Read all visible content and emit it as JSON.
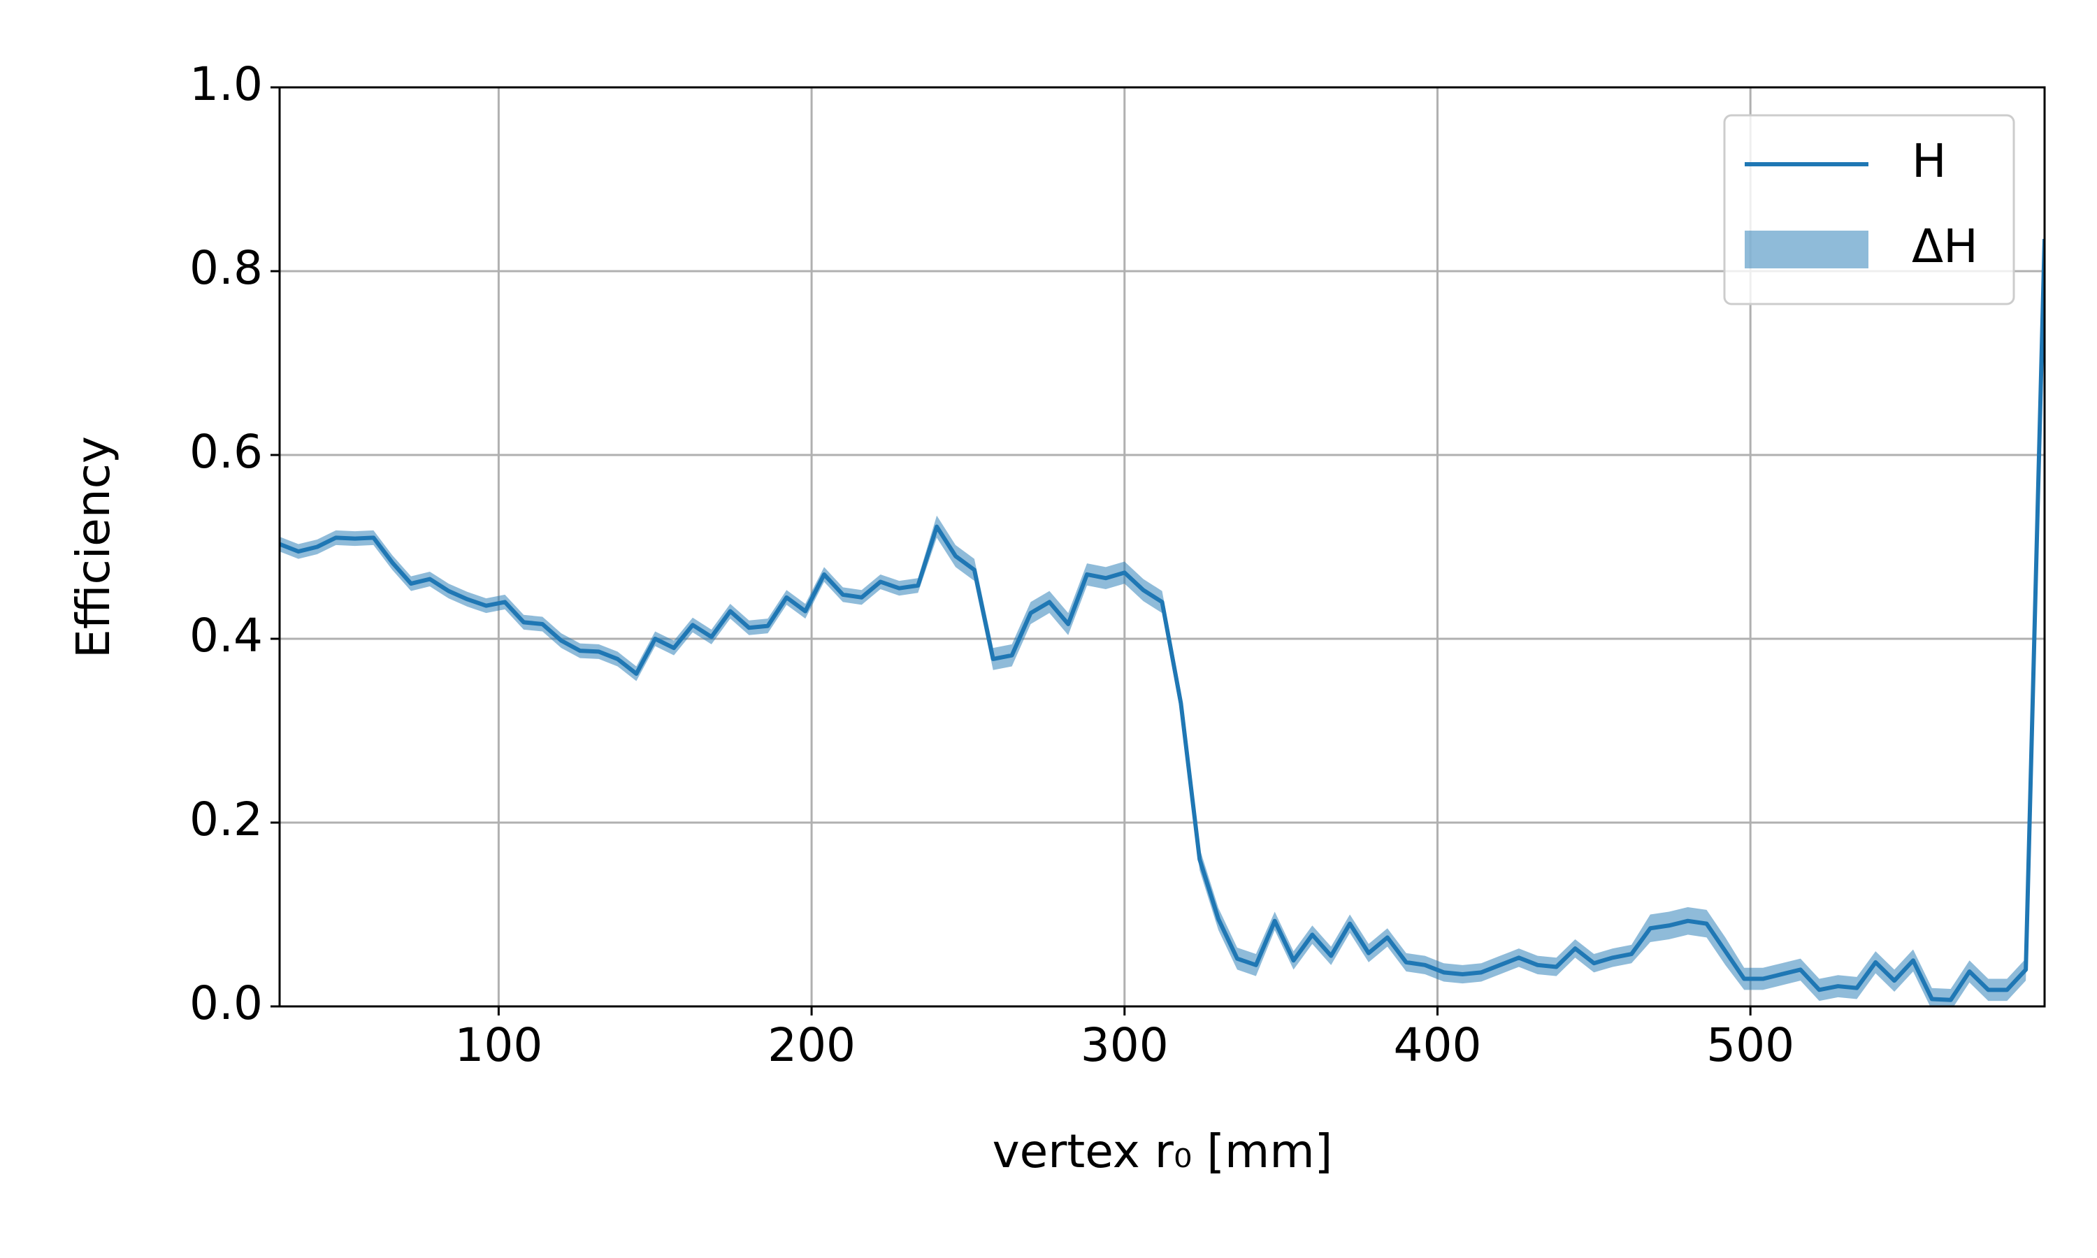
{
  "chart_data": {
    "type": "line",
    "xlabel": "vertex r₀ [mm]",
    "ylabel": "Efficiency",
    "x": [
      30,
      36,
      42,
      48,
      54,
      60,
      66,
      72,
      78,
      84,
      90,
      96,
      102,
      108,
      114,
      120,
      126,
      132,
      138,
      144,
      150,
      156,
      162,
      168,
      174,
      180,
      186,
      192,
      198,
      204,
      210,
      216,
      222,
      228,
      234,
      240,
      246,
      252,
      258,
      264,
      270,
      276,
      282,
      288,
      294,
      300,
      306,
      312,
      318,
      324,
      330,
      336,
      342,
      348,
      354,
      360,
      366,
      372,
      378,
      384,
      390,
      396,
      402,
      408,
      414,
      420,
      426,
      432,
      438,
      444,
      450,
      456,
      462,
      468,
      474,
      480,
      486,
      492,
      498,
      504,
      510,
      516,
      522,
      528,
      534,
      540,
      546,
      552,
      558,
      564,
      570,
      576,
      582,
      588,
      594
    ],
    "series": [
      {
        "name": "H",
        "color": "#1f77b4",
        "values": [
          0.503,
          0.495,
          0.5,
          0.51,
          0.509,
          0.51,
          0.483,
          0.46,
          0.465,
          0.452,
          0.443,
          0.436,
          0.44,
          0.418,
          0.416,
          0.398,
          0.387,
          0.386,
          0.378,
          0.362,
          0.4,
          0.39,
          0.415,
          0.402,
          0.43,
          0.412,
          0.414,
          0.445,
          0.43,
          0.47,
          0.448,
          0.445,
          0.462,
          0.455,
          0.458,
          0.522,
          0.49,
          0.475,
          0.378,
          0.382,
          0.428,
          0.44,
          0.416,
          0.47,
          0.466,
          0.472,
          0.453,
          0.44,
          0.33,
          0.16,
          0.095,
          0.052,
          0.045,
          0.093,
          0.05,
          0.078,
          0.055,
          0.09,
          0.058,
          0.075,
          0.048,
          0.045,
          0.037,
          0.035,
          0.037,
          0.045,
          0.053,
          0.045,
          0.043,
          0.063,
          0.047,
          0.053,
          0.057,
          0.085,
          0.088,
          0.093,
          0.09,
          0.06,
          0.03,
          0.03,
          0.035,
          0.04,
          0.018,
          0.022,
          0.02,
          0.048,
          0.028,
          0.05,
          0.008,
          0.007,
          0.038,
          0.018,
          0.018,
          0.04,
          0.835
        ]
      },
      {
        "name": "ΔH",
        "color": "#1f77b4",
        "band_of": "H",
        "values": [
          0.008,
          0.008,
          0.008,
          0.008,
          0.008,
          0.008,
          0.008,
          0.008,
          0.008,
          0.008,
          0.008,
          0.008,
          0.008,
          0.008,
          0.008,
          0.008,
          0.008,
          0.008,
          0.008,
          0.008,
          0.008,
          0.008,
          0.008,
          0.008,
          0.008,
          0.008,
          0.008,
          0.008,
          0.008,
          0.008,
          0.008,
          0.008,
          0.008,
          0.008,
          0.008,
          0.012,
          0.012,
          0.012,
          0.012,
          0.012,
          0.012,
          0.012,
          0.012,
          0.012,
          0.012,
          0.012,
          0.012,
          0.012,
          0.012,
          0.012,
          0.012,
          0.012,
          0.012,
          0.01,
          0.01,
          0.01,
          0.01,
          0.01,
          0.01,
          0.01,
          0.01,
          0.01,
          0.01,
          0.01,
          0.01,
          0.01,
          0.01,
          0.01,
          0.01,
          0.01,
          0.01,
          0.01,
          0.01,
          0.015,
          0.015,
          0.015,
          0.015,
          0.015,
          0.012,
          0.012,
          0.012,
          0.012,
          0.012,
          0.012,
          0.012,
          0.012,
          0.012,
          0.012,
          0.012,
          0.012,
          0.012,
          0.012,
          0.012,
          0.012,
          0.012
        ]
      }
    ],
    "xlim": [
      30,
      594
    ],
    "ylim": [
      0,
      1
    ],
    "xticks": [
      100,
      200,
      300,
      400,
      500
    ],
    "yticks": [
      {
        "value": 0,
        "label": "0.0"
      },
      0.2,
      0.4,
      0.6,
      0.8,
      {
        "value": 1,
        "label": "1.0"
      }
    ],
    "grid": true,
    "legend": "upper right"
  }
}
